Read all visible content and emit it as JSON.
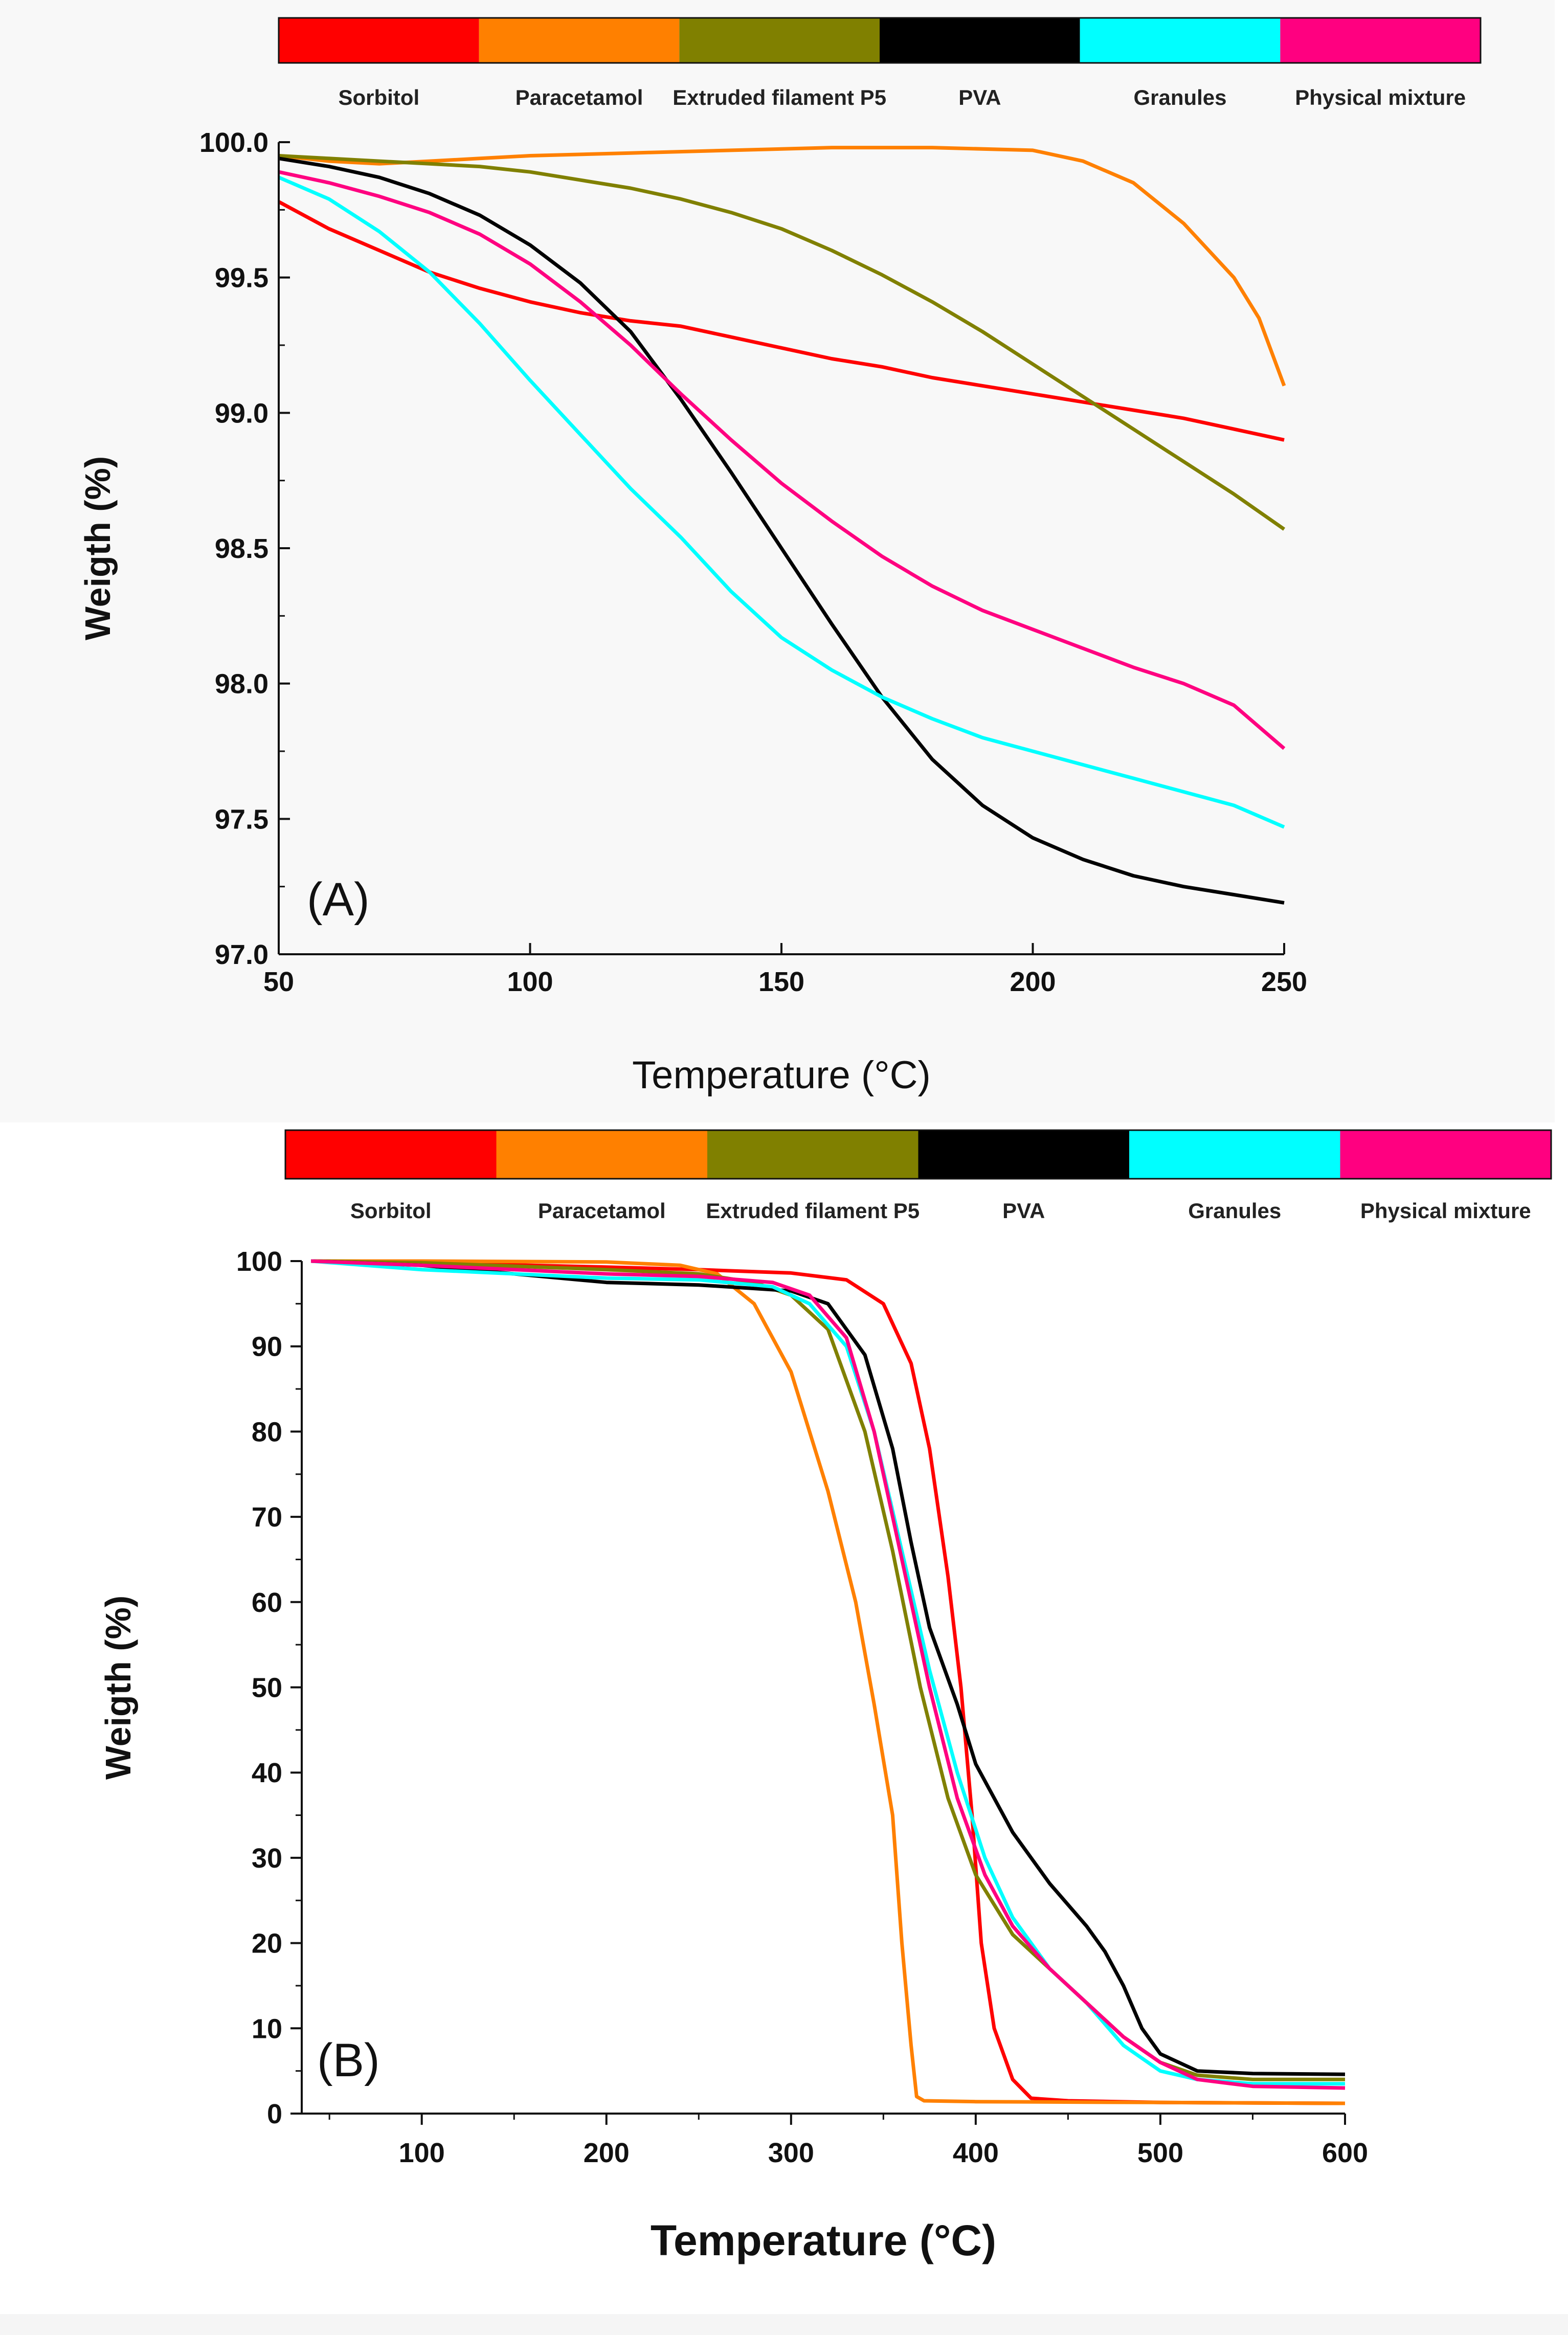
{
  "legend": [
    {
      "name": "Sorbitol",
      "color": "#FF0000"
    },
    {
      "name": "Paracetamol",
      "color": "#FF8000"
    },
    {
      "name": "Extruded filament P5",
      "color": "#808000"
    },
    {
      "name": "PVA",
      "color": "#000000"
    },
    {
      "name": "Granules",
      "color": "#00FFFF"
    },
    {
      "name": "Physical mixture",
      "color": "#FF0080"
    }
  ],
  "chart_data": [
    {
      "type": "line",
      "panel_label": "(A)",
      "title": "",
      "xlabel": "Temperature (°C)",
      "ylabel": "Weigth (%)",
      "xlim": [
        50,
        250
      ],
      "ylim": [
        97.0,
        100.0
      ],
      "xticks": [
        50,
        100,
        150,
        200,
        250
      ],
      "yticks": [
        97.0,
        97.5,
        98.0,
        98.5,
        99.0,
        99.5,
        100.0
      ],
      "ytick_labels": [
        "97.0",
        "97.5",
        "98.0",
        "98.5",
        "99.0",
        "99.5",
        "100.0"
      ],
      "series": [
        {
          "name": "Sorbitol",
          "color": "#FF0000",
          "x": [
            50,
            60,
            70,
            80,
            90,
            100,
            110,
            120,
            130,
            140,
            150,
            160,
            170,
            180,
            190,
            200,
            210,
            220,
            230,
            240,
            250
          ],
          "y": [
            99.78,
            99.68,
            99.6,
            99.52,
            99.46,
            99.41,
            99.37,
            99.34,
            99.32,
            99.28,
            99.24,
            99.2,
            99.17,
            99.13,
            99.1,
            99.07,
            99.04,
            99.01,
            98.98,
            98.94,
            98.9
          ]
        },
        {
          "name": "Paracetamol",
          "color": "#FF8000",
          "x": [
            50,
            60,
            70,
            80,
            90,
            100,
            120,
            140,
            160,
            180,
            200,
            210,
            220,
            230,
            240,
            245,
            250
          ],
          "y": [
            99.95,
            99.93,
            99.92,
            99.93,
            99.94,
            99.95,
            99.96,
            99.97,
            99.98,
            99.98,
            99.97,
            99.93,
            99.85,
            99.7,
            99.5,
            99.35,
            99.1
          ]
        },
        {
          "name": "Extruded filament P5",
          "color": "#808000",
          "x": [
            50,
            60,
            70,
            80,
            90,
            100,
            110,
            120,
            130,
            140,
            150,
            160,
            170,
            180,
            190,
            200,
            210,
            220,
            230,
            240,
            250
          ],
          "y": [
            99.95,
            99.94,
            99.93,
            99.92,
            99.91,
            99.89,
            99.86,
            99.83,
            99.79,
            99.74,
            99.68,
            99.6,
            99.51,
            99.41,
            99.3,
            99.18,
            99.06,
            98.94,
            98.82,
            98.7,
            98.57
          ]
        },
        {
          "name": "PVA",
          "color": "#000000",
          "x": [
            50,
            60,
            70,
            80,
            90,
            100,
            110,
            120,
            130,
            140,
            150,
            160,
            170,
            180,
            190,
            200,
            210,
            220,
            230,
            240,
            250
          ],
          "y": [
            99.94,
            99.91,
            99.87,
            99.81,
            99.73,
            99.62,
            99.48,
            99.3,
            99.05,
            98.78,
            98.5,
            98.22,
            97.95,
            97.72,
            97.55,
            97.43,
            97.35,
            97.29,
            97.25,
            97.22,
            97.19
          ]
        },
        {
          "name": "Granules",
          "color": "#00FFFF",
          "x": [
            50,
            60,
            70,
            80,
            90,
            100,
            110,
            120,
            130,
            140,
            150,
            160,
            170,
            180,
            190,
            200,
            210,
            220,
            230,
            240,
            250
          ],
          "y": [
            99.87,
            99.79,
            99.67,
            99.52,
            99.33,
            99.12,
            98.92,
            98.72,
            98.54,
            98.34,
            98.17,
            98.05,
            97.95,
            97.87,
            97.8,
            97.75,
            97.7,
            97.65,
            97.6,
            97.55,
            97.47
          ]
        },
        {
          "name": "Physical mixture",
          "color": "#FF0080",
          "x": [
            50,
            60,
            70,
            80,
            90,
            100,
            110,
            120,
            130,
            140,
            150,
            160,
            170,
            180,
            190,
            200,
            210,
            220,
            230,
            240,
            250
          ],
          "y": [
            99.89,
            99.85,
            99.8,
            99.74,
            99.66,
            99.55,
            99.41,
            99.25,
            99.07,
            98.9,
            98.74,
            98.6,
            98.47,
            98.36,
            98.27,
            98.2,
            98.13,
            98.06,
            98.0,
            97.92,
            97.76
          ]
        }
      ]
    },
    {
      "type": "line",
      "panel_label": "(B)",
      "title": "",
      "xlabel": "Temperature (°C)",
      "ylabel": "Weigth (%)",
      "xlim": [
        35,
        600
      ],
      "ylim": [
        0,
        100
      ],
      "xticks": [
        100,
        200,
        300,
        400,
        500,
        600
      ],
      "yticks": [
        0,
        10,
        20,
        30,
        40,
        50,
        60,
        70,
        80,
        90,
        100
      ],
      "ytick_labels": [
        "0",
        "10",
        "20",
        "30",
        "40",
        "50",
        "60",
        "70",
        "80",
        "90",
        "100"
      ],
      "series": [
        {
          "name": "Sorbitol",
          "color": "#FF0000",
          "x": [
            40,
            100,
            200,
            250,
            300,
            330,
            350,
            365,
            375,
            385,
            392,
            398,
            403,
            410,
            420,
            430,
            450,
            500,
            600
          ],
          "y": [
            100,
            99.8,
            99.3,
            99.0,
            98.6,
            97.8,
            95.0,
            88.0,
            78.0,
            63.0,
            50.0,
            35.0,
            20.0,
            10.0,
            4.0,
            1.8,
            1.5,
            1.3,
            1.2
          ]
        },
        {
          "name": "Paracetamol",
          "color": "#FF8000",
          "x": [
            40,
            100,
            200,
            240,
            260,
            280,
            300,
            320,
            335,
            345,
            355,
            360,
            365,
            368,
            372,
            400,
            500,
            600
          ],
          "y": [
            100,
            100,
            99.9,
            99.5,
            98.5,
            95.0,
            87.0,
            73.0,
            60.0,
            48.0,
            35.0,
            20.0,
            8.0,
            2.0,
            1.5,
            1.4,
            1.3,
            1.2
          ]
        },
        {
          "name": "Extruded filament P5",
          "color": "#808000",
          "x": [
            40,
            100,
            200,
            250,
            280,
            300,
            320,
            340,
            355,
            370,
            385,
            400,
            420,
            440,
            460,
            480,
            500,
            520,
            550,
            600
          ],
          "y": [
            100,
            99.8,
            99.0,
            98.5,
            97.5,
            96.0,
            92.0,
            80.0,
            66.0,
            50.0,
            37.0,
            28.0,
            21.0,
            17.0,
            13.0,
            9.0,
            6.0,
            4.5,
            4.0,
            4.0
          ]
        },
        {
          "name": "PVA",
          "color": "#000000",
          "x": [
            40,
            100,
            150,
            200,
            250,
            300,
            320,
            340,
            355,
            365,
            375,
            390,
            400,
            420,
            440,
            460,
            470,
            480,
            490,
            500,
            520,
            550,
            600
          ],
          "y": [
            100,
            99.5,
            98.5,
            97.5,
            97.2,
            96.5,
            95.0,
            89.0,
            78.0,
            67.0,
            57.0,
            48.0,
            41.0,
            33.0,
            27.0,
            22.0,
            19.0,
            15.0,
            10.0,
            7.0,
            5.0,
            4.7,
            4.6
          ]
        },
        {
          "name": "Granules",
          "color": "#00FFFF",
          "x": [
            40,
            100,
            200,
            250,
            290,
            310,
            330,
            345,
            360,
            375,
            390,
            405,
            420,
            440,
            460,
            480,
            500,
            520,
            550,
            600
          ],
          "y": [
            100,
            99.0,
            98.0,
            97.8,
            97.0,
            95.0,
            90.0,
            80.0,
            66.0,
            52.0,
            40.0,
            30.0,
            23.0,
            17.0,
            13.0,
            8.0,
            5.0,
            4.0,
            3.5,
            3.5
          ]
        },
        {
          "name": "Physical mixture",
          "color": "#FF0080",
          "x": [
            40,
            100,
            200,
            250,
            290,
            310,
            330,
            345,
            360,
            375,
            390,
            405,
            420,
            440,
            460,
            480,
            500,
            520,
            550,
            600
          ],
          "y": [
            100,
            99.5,
            98.5,
            98.2,
            97.5,
            96.0,
            91.0,
            80.0,
            65.0,
            50.0,
            37.0,
            28.0,
            22.0,
            17.0,
            13.0,
            9.0,
            6.0,
            4.0,
            3.2,
            3.0
          ]
        }
      ]
    }
  ]
}
